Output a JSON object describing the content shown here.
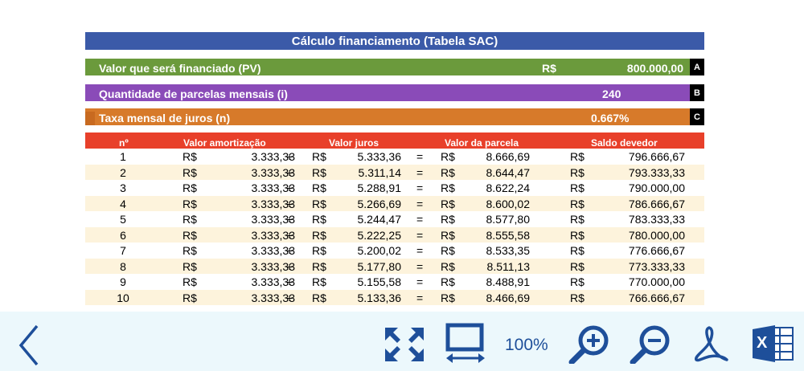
{
  "sheet": {
    "title": "Cálculo financiamento (Tabela SAC)",
    "rows": [
      {
        "label": "Valor que será financiado (PV)",
        "currency": "R$",
        "value": "800.000,00",
        "letter": "A"
      },
      {
        "label": "Quantidade de parcelas mensais (i)",
        "value": "240",
        "letter": "B"
      },
      {
        "label": "Taxa mensal de juros (n)",
        "value": "0.667%",
        "letter": "C"
      }
    ],
    "columns": {
      "n": "nº",
      "amort": "Valor amortização",
      "juros": "Valor juros",
      "parcela": "Valor da parcela",
      "saldo": "Saldo devedor"
    },
    "table": [
      {
        "n": "1",
        "cur": "R$",
        "amort": "3.333,33",
        "plus": "+",
        "juros": "5.333,36",
        "eq": "=",
        "parcela": "8.666,69",
        "saldo": "796.666,67"
      },
      {
        "n": "2",
        "cur": "R$",
        "amort": "3.333,33",
        "plus": "+",
        "juros": "5.311,14",
        "eq": "=",
        "parcela": "8.644,47",
        "saldo": "793.333,33"
      },
      {
        "n": "3",
        "cur": "R$",
        "amort": "3.333,33",
        "plus": "+",
        "juros": "5.288,91",
        "eq": "=",
        "parcela": "8.622,24",
        "saldo": "790.000,00"
      },
      {
        "n": "4",
        "cur": "R$",
        "amort": "3.333,33",
        "plus": "+",
        "juros": "5.266,69",
        "eq": "=",
        "parcela": "8.600,02",
        "saldo": "786.666,67"
      },
      {
        "n": "5",
        "cur": "R$",
        "amort": "3.333,33",
        "plus": "+",
        "juros": "5.244,47",
        "eq": "=",
        "parcela": "8.577,80",
        "saldo": "783.333,33"
      },
      {
        "n": "6",
        "cur": "R$",
        "amort": "3.333,33",
        "plus": "+",
        "juros": "5.222,25",
        "eq": "=",
        "parcela": "8.555,58",
        "saldo": "780.000,00"
      },
      {
        "n": "7",
        "cur": "R$",
        "amort": "3.333,33",
        "plus": "+",
        "juros": "5.200,02",
        "eq": "=",
        "parcela": "8.533,35",
        "saldo": "776.666,67"
      },
      {
        "n": "8",
        "cur": "R$",
        "amort": "3.333,33",
        "plus": "+",
        "juros": "5.177,80",
        "eq": "=",
        "parcela": "8.511,13",
        "saldo": "773.333,33"
      },
      {
        "n": "9",
        "cur": "R$",
        "amort": "3.333,33",
        "plus": "+",
        "juros": "5.155,58",
        "eq": "=",
        "parcela": "8.488,91",
        "saldo": "770.000,00"
      },
      {
        "n": "10",
        "cur": "R$",
        "amort": "3.333,33",
        "plus": "+",
        "juros": "5.133,36",
        "eq": "=",
        "parcela": "8.466,69",
        "saldo": "766.666,67"
      }
    ]
  },
  "toolbar": {
    "zoom": "100%",
    "icons": [
      "back-chevron-icon",
      "fullscreen-icon",
      "fit-width-icon",
      "zoom-in-icon",
      "zoom-out-icon",
      "pdf-icon",
      "excel-icon"
    ],
    "excel_glyph": "X",
    "accent_color": "#1e4f9a"
  },
  "colors": {
    "title": "#3b5aa8",
    "pv": "#6b9a3c",
    "parcelas": "#8a4bb8",
    "taxa": "#d77a2a",
    "header": "#e8402a",
    "alt_row": "#fdf3dc"
  }
}
